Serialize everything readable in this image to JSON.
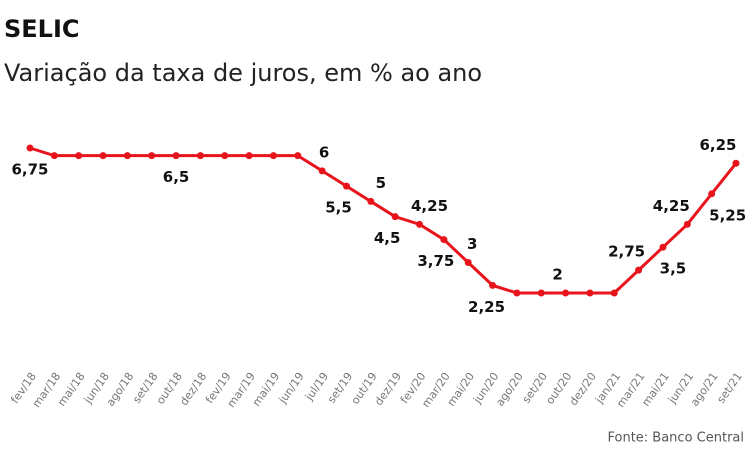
{
  "chart_data": {
    "type": "line",
    "title": "SELIC",
    "subtitle": "Variação da taxa de juros, em % ao ano",
    "source": "Fonte: Banco Central",
    "categories": [
      "fev/18",
      "mar/18",
      "mai/18",
      "jun/18",
      "ago/18",
      "set/18",
      "out/18",
      "dez/18",
      "fev/19",
      "mar/19",
      "mai/19",
      "jun/19",
      "jul/19",
      "set/19",
      "out/19",
      "dez/19",
      "fev/20",
      "mar/20",
      "mai/20",
      "jun/20",
      "ago/20",
      "set/20",
      "out/20",
      "dez/20",
      "jan/21",
      "mar/21",
      "mai/21",
      "jun/21",
      "ago/21",
      "set/21"
    ],
    "series": [
      {
        "name": "SELIC",
        "color": "#e8141c",
        "values": [
          6.75,
          6.5,
          6.5,
          6.5,
          6.5,
          6.5,
          6.5,
          6.5,
          6.5,
          6.5,
          6.5,
          6.5,
          6,
          5.5,
          5,
          4.5,
          4.25,
          3.75,
          3,
          2.25,
          2,
          2,
          2,
          2,
          2,
          2.75,
          3.5,
          4.25,
          5.25,
          6.25
        ],
        "value_labels": [
          "6,75",
          null,
          null,
          null,
          null,
          null,
          "6,5",
          null,
          null,
          null,
          null,
          null,
          "6",
          "5,5",
          "5",
          "4,5",
          "4,25",
          "3,75",
          "3",
          "2,25",
          null,
          null,
          "2",
          null,
          null,
          "2,75",
          "3,5",
          "4,25",
          "5,25",
          "6,25"
        ]
      }
    ]
  }
}
